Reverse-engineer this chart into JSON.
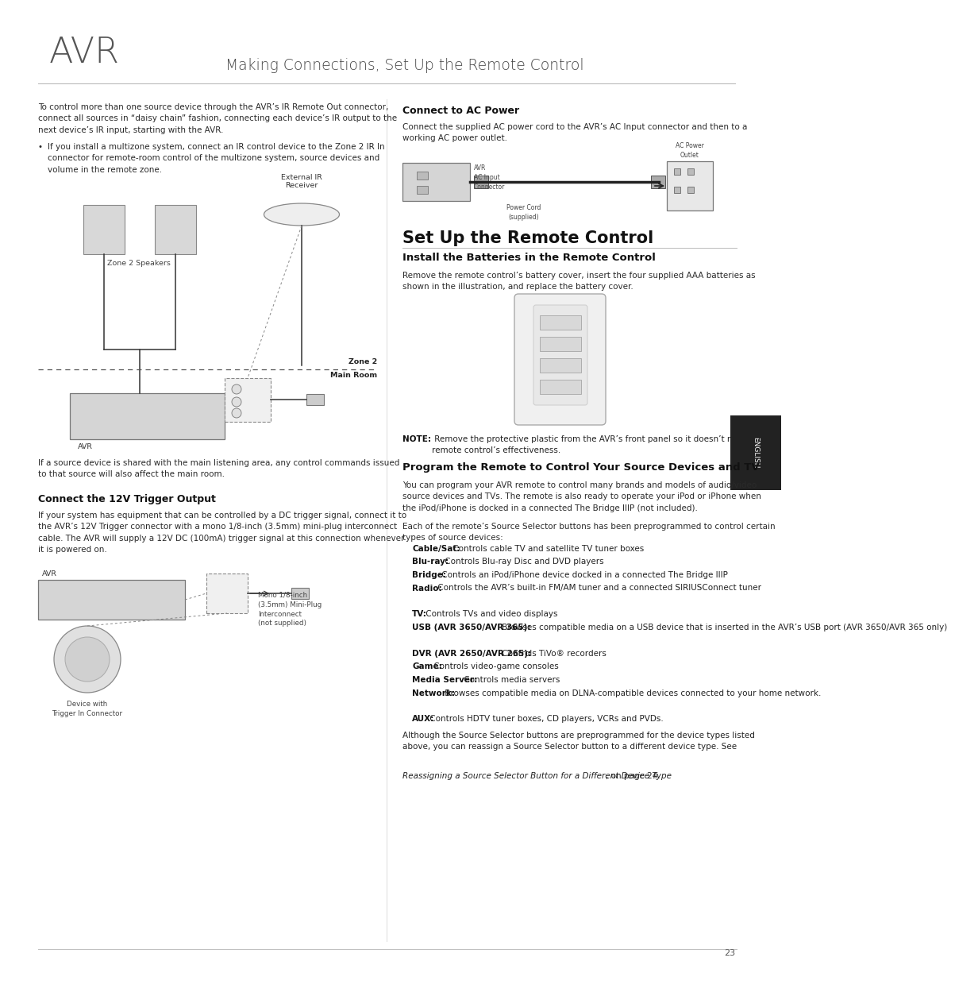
{
  "page_title": "Making Connections, Set Up the Remote Control",
  "avr_logo": "AVR",
  "page_number": "23",
  "bg_color": "#ffffff",
  "text_color": "#2a2a2a",
  "header_line_color": "#bbbbbb",
  "intro_text": "To control more than one source device through the AVR’s IR Remote Out connector,\nconnect all sources in “daisy chain” fashion, connecting each device’s IR output to the\nnext device’s IR input, starting with the AVR.",
  "bullet_text": "If you install a multizone system, connect an IR control device to the Zone 2 IR In\nconnector for remote-room control of the multizone system, source devices and\nvolume in the remote zone.",
  "below_diagram_text": "If a source device is shared with the main listening area, any control commands issued\nto that source will also affect the main room.",
  "connect_12v_title": "Connect the 12V Trigger Output",
  "connect_12v_text": "If your system has equipment that can be controlled by a DC trigger signal, connect it to\nthe AVR’s 12V Trigger connector with a mono 1/8-inch (3.5mm) mini-plug interconnect\ncable. The AVR will supply a 12V DC (100mA) trigger signal at this connection whenever\nit is powered on.",
  "connect_ac_title": "Connect to AC Power",
  "connect_ac_text": "Connect the supplied AC power cord to the AVR’s AC Input connector and then to a\nworking AC power outlet.",
  "setup_remote_title": "Set Up the Remote Control",
  "install_batteries_title": "Install the Batteries in the Remote Control",
  "install_batteries_text": "Remove the remote control’s battery cover, insert the four supplied AAA batteries as\nshown in the illustration, and replace the battery cover.",
  "note_bold": "NOTE:",
  "note_text": " Remove the protective plastic from the AVR’s front panel so it doesn’t reduce the\nremote control’s effectiveness.",
  "program_remote_title": "Program the Remote to Control Your Source Devices and TV",
  "program_remote_text": "You can program your AVR remote to control many brands and models of audio/video\nsource devices and TVs. The remote is also ready to operate your iPod or iPhone when\nthe iPod/iPhone is docked in a connected The Bridge IIIP (not included).",
  "source_selector_text": "Each of the remote’s Source Selector buttons has been preprogrammed to control certain\ntypes of source devices:",
  "source_items": [
    {
      "bold": "Cable/Sat:",
      "text": " Controls cable TV and satellite TV tuner boxes"
    },
    {
      "bold": "Blu-ray:",
      "text": " Controls Blu-ray Disc and DVD players"
    },
    {
      "bold": "Bridge:",
      "text": " Controls an iPod/iPhone device docked in a connected The Bridge IIIP"
    },
    {
      "bold": "Radio:",
      "text": " Controls the AVR’s built-in FM/AM tuner and a connected SIRIUSConnect tuner"
    },
    {
      "bold": "TV:",
      "text": " Controls TVs and video displays"
    },
    {
      "bold": "USB (AVR 3650/AVR 365):",
      "text": " Browses compatible media on a USB device that is inserted in the AVR’s USB port (AVR 3650/AVR 365 only)"
    },
    {
      "bold": "DVR (AVR 2650/AVR 265):",
      "text": " Controls TiVo® recorders"
    },
    {
      "bold": "Game:",
      "text": " Controls video-game consoles"
    },
    {
      "bold": "Media Server:",
      "text": " Controls media servers"
    },
    {
      "bold": "Network:",
      "text": " Browses compatible media on DLNA-compatible devices connected to your home network."
    },
    {
      "bold": "AUX:",
      "text": " Controls HDTV tuner boxes, CD players, VCRs and PVDs."
    }
  ],
  "closing_text_normal": "Although the Source Selector buttons are preprogrammed for the device types listed\nabove, you can reassign a Source Selector button to a different device type. See\n",
  "closing_text_italic": "Reassigning a Source Selector Button for a Different Device Type",
  "closing_text_end": ", on page 24.",
  "sidebar_text": "ENGLISH",
  "zone2_label": "Zone 2",
  "mainroom_label": "Main Room",
  "zone2_speakers_label": "Zone 2 Speakers",
  "external_ir_label": "External IR\nReceiver",
  "avr_label": "AVR",
  "device_trigger_label": "Device with\nTrigger In Connector",
  "mono_plug_label": "Mono 1/8-inch\n(3.5mm) Mini-Plug\nInterconnect\n(not supplied)"
}
